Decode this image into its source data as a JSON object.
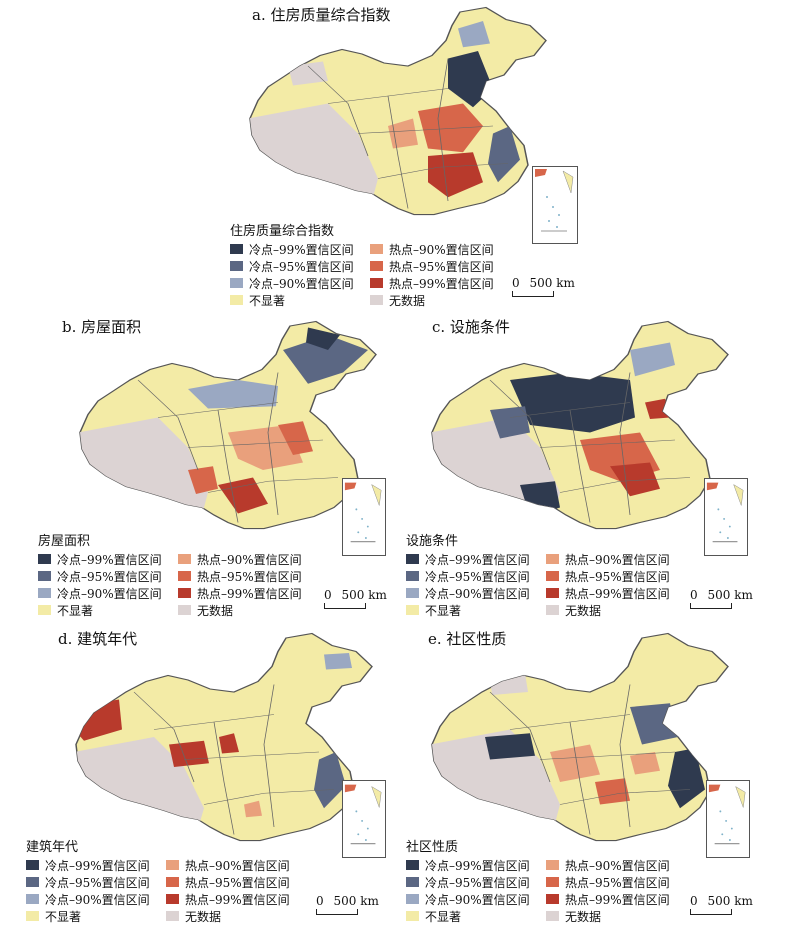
{
  "legend_classes": [
    {
      "label": "冷点–99%置信区间",
      "color": "#2f3a4f"
    },
    {
      "label": "热点–90%置信区间",
      "color": "#e9a07c"
    },
    {
      "label": "冷点–95%置信区间",
      "color": "#5b6783"
    },
    {
      "label": "热点–95%置信区间",
      "color": "#d7664a"
    },
    {
      "label": "冷点–90%置信区间",
      "color": "#9aa8c2"
    },
    {
      "label": "热点–99%置信区间",
      "color": "#b83a2c"
    },
    {
      "label": "不显著",
      "color": "#f3eba6"
    },
    {
      "label": "无数据",
      "color": "#dcd3d3"
    }
  ],
  "scale_label": "500 km",
  "scale_zero": "0",
  "panels": [
    {
      "id": "a",
      "title": "a. 住房质量综合指数",
      "legend_title": "住房质量综合指数"
    },
    {
      "id": "b",
      "title": "b. 房屋面积",
      "legend_title": "房屋面积"
    },
    {
      "id": "c",
      "title": "c. 设施条件",
      "legend_title": "设施条件"
    },
    {
      "id": "d",
      "title": "d. 建筑年代",
      "legend_title": "建筑年代"
    },
    {
      "id": "e",
      "title": "e. 社区性质",
      "legend_title": "社区性质"
    }
  ]
}
